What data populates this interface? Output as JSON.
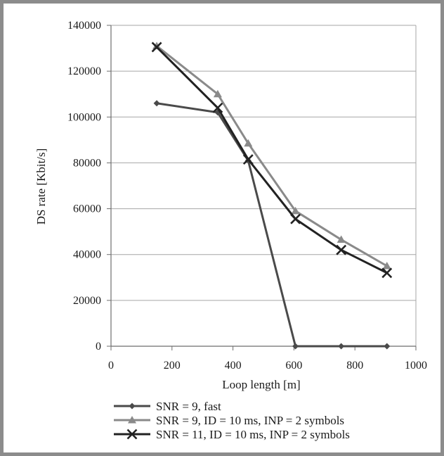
{
  "chart_data": {
    "type": "line",
    "title": "",
    "xlabel": "Loop length [m]",
    "ylabel": "DS rate [Kbit/s]",
    "xlim": [
      0,
      1000
    ],
    "ylim": [
      0,
      140000
    ],
    "xticks": [
      0,
      200,
      400,
      600,
      800,
      1000
    ],
    "yticks": [
      0,
      20000,
      40000,
      60000,
      80000,
      100000,
      120000,
      140000
    ],
    "grid": "horizontal",
    "legend_position": "bottom",
    "series": [
      {
        "name": "SNR = 9, fast",
        "marker": "diamond",
        "color": "#4a4a4a",
        "x": [
          150,
          350,
          450,
          605,
          755,
          905
        ],
        "y": [
          106000,
          102000,
          81000,
          0,
          0,
          0
        ]
      },
      {
        "name": "SNR = 9, ID = 10 ms, INP = 2 symbols",
        "marker": "triangle",
        "color": "#8a8a8a",
        "x": [
          150,
          350,
          450,
          605,
          755,
          905
        ],
        "y": [
          131000,
          110000,
          88500,
          59000,
          46500,
          35000
        ]
      },
      {
        "name": "SNR = 11, ID = 10 ms, INP = 2 symbols",
        "marker": "x",
        "color": "#222222",
        "x": [
          150,
          350,
          450,
          605,
          755,
          905
        ],
        "y": [
          130500,
          104000,
          81500,
          55500,
          42000,
          32000
        ]
      }
    ]
  }
}
